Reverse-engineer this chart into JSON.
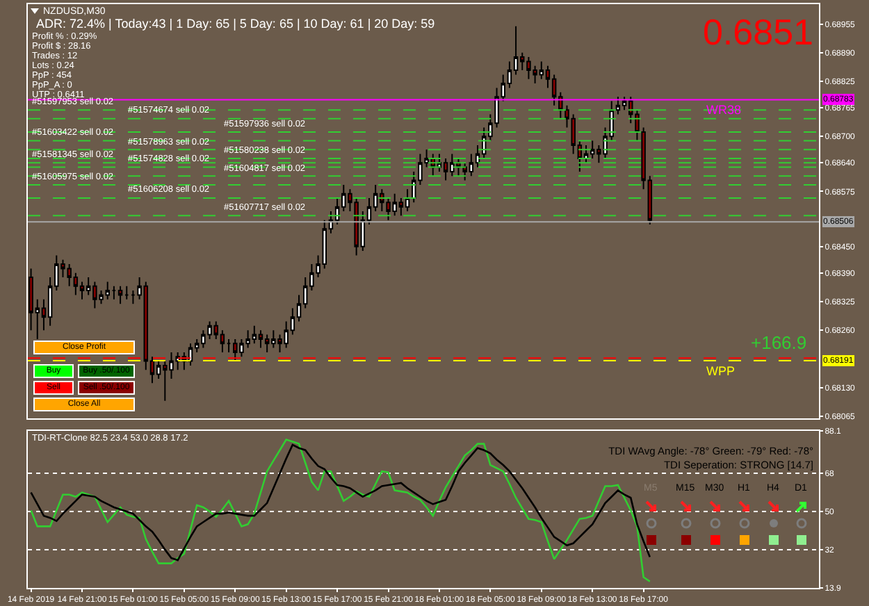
{
  "chart_data": [
    {
      "type": "candlestick",
      "title": "NZDUSD,M30",
      "subtitle": "ADR: 72.4% | Today:43 | 1 Day: 65 | 5 Day: 65 | 10 Day: 61 | 20 Day: 59",
      "tick_labels": "y",
      "ylim": [
        0.6806,
        0.69
      ],
      "yticks": [
        0.68955,
        {
          "value": 0.6889,
          "label": "0.68890"
        },
        0.68825,
        0.68765,
        {
          "value": 0.687,
          "label": "0.68700"
        },
        {
          "value": 0.6864,
          "label": "0.68640"
        },
        0.68575,
        {
          "value": 0.6845,
          "label": "0.68450"
        },
        {
          "value": 0.6839,
          "label": "0.68390"
        },
        0.68325,
        {
          "value": 0.6826,
          "label": "0.68260"
        },
        {
          "value": 0.6813,
          "label": "0.68130"
        },
        0.68065
      ],
      "categories": [
        null,
        null,
        null,
        null,
        null,
        null,
        null,
        null,
        null,
        null,
        null,
        null,
        null,
        null,
        null,
        null,
        null,
        null,
        null,
        null,
        null,
        null,
        null,
        null,
        null,
        null,
        null,
        null,
        null,
        null,
        null,
        null,
        null,
        null,
        null,
        null,
        null,
        null,
        null,
        null,
        null,
        null,
        null,
        null,
        null,
        null,
        null,
        null,
        null,
        null,
        null,
        null,
        null,
        null,
        null,
        null,
        null,
        null,
        null,
        null,
        null,
        null,
        null,
        null,
        null,
        null,
        null,
        null,
        null,
        null,
        null,
        null,
        null,
        null,
        null,
        null,
        null,
        null,
        null,
        null,
        null,
        null,
        null,
        null,
        null,
        null,
        null,
        null,
        null,
        null,
        null,
        null,
        null,
        null,
        null,
        null,
        null,
        null,
        null,
        null,
        null,
        null,
        null,
        null,
        null,
        null,
        null,
        null,
        null,
        null,
        null,
        null,
        null,
        null,
        null,
        null,
        null,
        null,
        null,
        null,
        null,
        null,
        null,
        null
      ],
      "ohlc": [
        [
          0.6838,
          0.684,
          0.6826,
          0.683
        ],
        [
          0.683,
          0.6833,
          0.6824,
          0.6831
        ],
        [
          0.6831,
          0.6833,
          0.6826,
          0.6829
        ],
        [
          0.6829,
          0.6838,
          0.6827,
          0.6836
        ],
        [
          0.6836,
          0.6843,
          0.6835,
          0.6841
        ],
        [
          0.6841,
          0.6842,
          0.6838,
          0.684
        ],
        [
          0.684,
          0.6841,
          0.6836,
          0.6838
        ],
        [
          0.6838,
          0.6839,
          0.6834,
          0.6836
        ],
        [
          0.6836,
          0.6837,
          0.6833,
          0.6835
        ],
        [
          0.6835,
          0.6838,
          0.6834,
          0.6836
        ],
        [
          0.6836,
          0.6837,
          0.6831,
          0.6833
        ],
        [
          0.6833,
          0.6835,
          0.6832,
          0.6834
        ],
        [
          0.6834,
          0.6837,
          0.6833,
          0.6835
        ],
        [
          0.6835,
          0.6836,
          0.6833,
          0.6835
        ],
        [
          0.6835,
          0.6836,
          0.6832,
          0.6834
        ],
        [
          0.6834,
          0.6836,
          0.6833,
          0.6834
        ],
        [
          0.6834,
          0.6835,
          0.6832,
          0.6834
        ],
        [
          0.6834,
          0.6838,
          0.6833,
          0.6836
        ],
        [
          0.6836,
          0.6837,
          0.6817,
          0.6819
        ],
        [
          0.6819,
          0.682,
          0.6814,
          0.6816
        ],
        [
          0.6816,
          0.6819,
          0.6815,
          0.6818
        ],
        [
          0.6818,
          0.6819,
          0.681,
          0.6817
        ],
        [
          0.6817,
          0.6821,
          0.6815,
          0.6819
        ],
        [
          0.6819,
          0.6821,
          0.6817,
          0.682
        ],
        [
          0.682,
          0.6821,
          0.6817,
          0.6819
        ],
        [
          0.6819,
          0.6823,
          0.6818,
          0.6822
        ],
        [
          0.6822,
          0.6824,
          0.6821,
          0.6823
        ],
        [
          0.6823,
          0.6826,
          0.6822,
          0.6825
        ],
        [
          0.6825,
          0.6828,
          0.6824,
          0.6827
        ],
        [
          0.6827,
          0.6828,
          0.6824,
          0.6825
        ],
        [
          0.6825,
          0.6826,
          0.6821,
          0.6823
        ],
        [
          0.6823,
          0.6824,
          0.6821,
          0.6823
        ],
        [
          0.6823,
          0.6824,
          0.6819,
          0.6821
        ],
        [
          0.6821,
          0.6824,
          0.682,
          0.6823
        ],
        [
          0.6823,
          0.6826,
          0.6822,
          0.6824
        ],
        [
          0.6824,
          0.6827,
          0.6823,
          0.6825
        ],
        [
          0.6825,
          0.6826,
          0.6822,
          0.6824
        ],
        [
          0.6824,
          0.6825,
          0.6821,
          0.6823
        ],
        [
          0.6823,
          0.6826,
          0.6822,
          0.6824
        ],
        [
          0.6824,
          0.6825,
          0.6821,
          0.6823
        ],
        [
          0.6823,
          0.6828,
          0.6822,
          0.6826
        ],
        [
          0.6826,
          0.6831,
          0.6825,
          0.6829
        ],
        [
          0.6829,
          0.6834,
          0.6828,
          0.6832
        ],
        [
          0.6832,
          0.6838,
          0.6831,
          0.6836
        ],
        [
          0.6836,
          0.6841,
          0.6835,
          0.6839
        ],
        [
          0.6839,
          0.6843,
          0.6838,
          0.6841
        ],
        [
          0.6841,
          0.6851,
          0.684,
          0.6849
        ],
        [
          0.6849,
          0.6853,
          0.6848,
          0.6851
        ],
        [
          0.6851,
          0.6856,
          0.685,
          0.6854
        ],
        [
          0.6854,
          0.6859,
          0.6853,
          0.6857
        ],
        [
          0.6857,
          0.6858,
          0.6853,
          0.6855
        ],
        [
          0.6855,
          0.6856,
          0.6843,
          0.6845
        ],
        [
          0.6845,
          0.6853,
          0.6844,
          0.6851
        ],
        [
          0.6851,
          0.6856,
          0.685,
          0.6854
        ],
        [
          0.6854,
          0.6859,
          0.6853,
          0.6857
        ],
        [
          0.6857,
          0.6858,
          0.6853,
          0.6855
        ],
        [
          0.6855,
          0.6856,
          0.6851,
          0.6853
        ],
        [
          0.6853,
          0.6857,
          0.6852,
          0.6855
        ],
        [
          0.6855,
          0.6856,
          0.6852,
          0.6854
        ],
        [
          0.6854,
          0.6858,
          0.6853,
          0.6856
        ],
        [
          0.6856,
          0.6862,
          0.6855,
          0.686
        ],
        [
          0.686,
          0.6866,
          0.6859,
          0.6864
        ],
        [
          0.6864,
          0.6867,
          0.6863,
          0.6865
        ],
        [
          0.6865,
          0.6866,
          0.6861,
          0.6863
        ],
        [
          0.6863,
          0.6866,
          0.6862,
          0.6864
        ],
        [
          0.6864,
          0.6865,
          0.686,
          0.6862
        ],
        [
          0.6862,
          0.6866,
          0.6861,
          0.6864
        ],
        [
          0.6864,
          0.6865,
          0.6861,
          0.6863
        ],
        [
          0.6863,
          0.6864,
          0.686,
          0.6862
        ],
        [
          0.6862,
          0.6866,
          0.6861,
          0.6864
        ],
        [
          0.6864,
          0.6868,
          0.6863,
          0.6866
        ],
        [
          0.6866,
          0.6872,
          0.6865,
          0.687
        ],
        [
          0.687,
          0.6875,
          0.6869,
          0.6873
        ],
        [
          0.6873,
          0.6881,
          0.6872,
          0.6879
        ],
        [
          0.6879,
          0.6884,
          0.6878,
          0.6882
        ],
        [
          0.6882,
          0.6887,
          0.6881,
          0.6885
        ],
        [
          0.6885,
          0.6895,
          0.6884,
          0.6888
        ],
        [
          0.6888,
          0.6889,
          0.6885,
          0.6887
        ],
        [
          0.6887,
          0.6888,
          0.6883,
          0.6885
        ],
        [
          0.6885,
          0.6886,
          0.6882,
          0.6884
        ],
        [
          0.6884,
          0.6887,
          0.6883,
          0.6885
        ],
        [
          0.6885,
          0.6886,
          0.6881,
          0.6883
        ],
        [
          0.6883,
          0.6884,
          0.6877,
          0.6879
        ],
        [
          0.6879,
          0.688,
          0.6874,
          0.6876
        ],
        [
          0.6876,
          0.6877,
          0.6872,
          0.6874
        ],
        [
          0.6874,
          0.6875,
          0.6866,
          0.6868
        ],
        [
          0.6868,
          0.6869,
          0.6862,
          0.6865
        ],
        [
          0.6865,
          0.6868,
          0.6864,
          0.6866
        ],
        [
          0.6866,
          0.6869,
          0.6865,
          0.6867
        ],
        [
          0.6867,
          0.6868,
          0.6864,
          0.6866
        ],
        [
          0.6866,
          0.6872,
          0.6865,
          0.687
        ],
        [
          0.687,
          0.6878,
          0.6869,
          0.6876
        ],
        [
          0.6876,
          0.6879,
          0.6875,
          0.6877
        ],
        [
          0.6877,
          0.6879,
          0.6876,
          0.6878
        ],
        [
          0.6878,
          0.6879,
          0.6873,
          0.6875
        ],
        [
          0.6875,
          0.6876,
          0.6869,
          0.6871
        ],
        [
          0.6871,
          0.6872,
          0.6858,
          0.686
        ],
        [
          0.686,
          0.6861,
          0.685,
          0.6851
        ],
        null,
        null,
        null,
        null,
        null,
        null,
        null,
        null,
        null,
        null,
        null,
        null,
        null,
        null,
        null,
        null,
        null,
        null,
        null,
        null,
        null,
        null,
        null,
        null,
        null,
        null
      ],
      "ref_lines": [
        {
          "axis": "y",
          "value": 0.68783,
          "label": "0.68783",
          "color": "#ff00ff",
          "line_style": "solid"
        },
        {
          "axis": "y",
          "value": 0.68506,
          "label": "0.68506",
          "color": "#a8a8a8",
          "line_style": "solid"
        },
        {
          "axis": "y",
          "value": 0.68197,
          "label": null,
          "color": "#ff0000",
          "line_style": "dashed"
        },
        {
          "axis": "y",
          "value": 0.68191,
          "label": "0.68191",
          "color": "#ffff00",
          "line_style": "dashed"
        },
        {
          "axis": "y",
          "value": 0.6876,
          "label": "#51597953 sell 0.02",
          "color": "#32cd32",
          "line_style": "dashed"
        },
        {
          "axis": "y",
          "value": 0.6874,
          "label": "#51574674 sell 0.02",
          "color": "#32cd32",
          "line_style": "dashed"
        },
        {
          "axis": "y",
          "value": 0.6871,
          "label": "#51597936 sell 0.02",
          "color": "#32cd32",
          "line_style": "dashed"
        },
        {
          "axis": "y",
          "value": 0.6869,
          "label": "#51603422 sell 0.02",
          "color": "#32cd32",
          "line_style": "dashed"
        },
        {
          "axis": "y",
          "value": 0.6867,
          "label": "#51578963 sell 0.02",
          "color": "#32cd32",
          "line_style": "dashed"
        },
        {
          "axis": "y",
          "value": 0.6865,
          "label": "#51580238 sell 0.02",
          "color": "#32cd32",
          "line_style": "dashed"
        },
        {
          "axis": "y",
          "value": 0.6864,
          "label": "#51581345 sell 0.02",
          "color": "#32cd32",
          "line_style": "dashed"
        },
        {
          "axis": "y",
          "value": 0.6863,
          "label": "#51574828 sell 0.02",
          "color": "#32cd32",
          "line_style": "dashed"
        },
        {
          "axis": "y",
          "value": 0.6861,
          "label": "#51604817 sell 0.02",
          "color": "#32cd32",
          "line_style": "dashed"
        },
        {
          "axis": "y",
          "value": 0.6859,
          "label": "#51605975 sell 0.02",
          "color": "#32cd32",
          "line_style": "dashed"
        },
        {
          "axis": "y",
          "value": 0.6856,
          "label": "#51606208 sell 0.02",
          "color": "#32cd32",
          "line_style": "dashed"
        },
        {
          "axis": "y",
          "value": 0.6852,
          "label": "#51607717 sell 0.02",
          "color": "#32cd32",
          "line_style": "dashed"
        }
      ],
      "annotations": [
        "Profit % : 0.29%",
        "Profit $ : 28.16",
        "Trades : 12",
        "Lots : 0.24",
        "PpP : 454",
        "PpP_A : 0",
        "UTP : 0.6411",
        "0.6851",
        "+166.9",
        "Close Profit",
        "Buy",
        "Buy .50/.100",
        "Sell",
        "Sell .50/.100",
        "Close All",
        "WR38",
        "WPP"
      ]
    },
    {
      "type": "line",
      "title": "TDI-RT-Clone 82.5 23.4 53.0 28.8 17.2",
      "ylim": [
        13.9,
        88.1
      ],
      "yticks": [
        88.1,
        68,
        50,
        32,
        13.9
      ],
      "grid": "y",
      "categories": [
        "14 Feb 2019",
        null,
        null,
        null,
        null,
        null,
        null,
        null,
        "14 Feb 21:00",
        null,
        null,
        null,
        null,
        null,
        null,
        null,
        "15 Feb 01:00",
        null,
        null,
        null,
        null,
        null,
        null,
        null,
        "15 Feb 05:00",
        null,
        null,
        null,
        null,
        null,
        null,
        null,
        "15 Feb 09:00",
        null,
        null,
        null,
        null,
        null,
        null,
        null,
        "15 Feb 13:00",
        null,
        null,
        null,
        null,
        null,
        null,
        null,
        "15 Feb 17:00",
        null,
        null,
        null,
        null,
        null,
        null,
        null,
        "15 Feb 21:00",
        null,
        null,
        null,
        null,
        null,
        null,
        null,
        "18 Feb 01:00",
        null,
        null,
        null,
        null,
        null,
        null,
        null,
        "18 Feb 05:00",
        null,
        null,
        null,
        null,
        null,
        null,
        null,
        "18 Feb 09:00",
        null,
        null,
        null,
        null,
        null,
        null,
        null,
        "18 Feb 13:00",
        null,
        null,
        null,
        null,
        null,
        null,
        null,
        "18 Feb 17:00",
        null,
        null,
        null,
        null,
        null,
        null,
        null,
        null,
        null,
        null,
        null,
        null,
        null,
        null,
        null,
        null,
        null,
        null,
        null,
        null,
        null,
        null,
        null,
        null,
        null,
        null,
        null
      ],
      "series": [
        {
          "color": "#32cd32",
          "values": [
            50.5,
            43,
            43,
            43,
            50.5,
            58,
            58,
            57,
            59,
            58,
            57,
            51,
            45,
            48.5,
            52,
            48.5,
            47.5,
            47,
            37,
            31,
            25.5,
            25.5,
            25.5,
            28,
            30,
            41.5,
            53,
            52,
            50,
            47.5,
            51,
            55,
            49,
            43,
            44,
            49,
            59,
            69,
            74,
            79,
            84,
            83,
            82,
            73,
            64,
            60,
            69,
            69,
            62,
            55,
            57,
            59.5,
            58,
            57,
            63,
            69,
            68.5,
            60,
            59.5,
            59,
            57,
            55.5,
            52,
            48,
            55,
            61.5,
            66.5,
            71.5,
            76.5,
            79,
            82,
            82,
            72,
            70.5,
            69,
            63,
            56.5,
            51.5,
            46.5,
            46,
            45,
            36,
            27.5,
            32,
            36.5,
            41.5,
            46.5,
            47,
            48,
            55,
            62,
            62,
            62.5,
            56.5,
            50.5,
            43,
            19,
            17,
            null,
            null,
            null,
            null,
            null,
            null,
            null,
            null,
            null,
            null,
            null,
            null,
            null,
            null,
            null,
            null,
            null,
            null,
            null,
            null,
            null,
            null,
            null,
            null,
            null,
            null
          ]
        },
        {
          "color": "#000000",
          "values": [
            59,
            53.5,
            48,
            47,
            45.5,
            49,
            52,
            55,
            58,
            57.5,
            57,
            55,
            53.5,
            52,
            51,
            50,
            49,
            46,
            43,
            40.5,
            36.5,
            32,
            28,
            27,
            32.5,
            38,
            43,
            45,
            47,
            49,
            49,
            49.5,
            49,
            48.5,
            48,
            48,
            51,
            54,
            61,
            68,
            75,
            81.5,
            80,
            79,
            75,
            71.5,
            70,
            66,
            62.5,
            62,
            61,
            59,
            57,
            58.5,
            60,
            62,
            62.5,
            63,
            63.5,
            61,
            59,
            57,
            55,
            53.5,
            54.5,
            55.5,
            62,
            69,
            73,
            76.5,
            80,
            79,
            77.5,
            74.5,
            72,
            69,
            65,
            61,
            56.5,
            52,
            47,
            42.5,
            38,
            36,
            34,
            35,
            38,
            41,
            44,
            49,
            54,
            57,
            60,
            58,
            56.5,
            44,
            36,
            28.5,
            null,
            null,
            null,
            null,
            null,
            null,
            null,
            null,
            null,
            null,
            null,
            null,
            null,
            null,
            null,
            null,
            null,
            null,
            null,
            null,
            null,
            null,
            null,
            null,
            null,
            null
          ]
        }
      ],
      "annotations": [
        "TDI WAvg Angle: -78°  Green: -79°  Red: -78°",
        "TDI Seperation: STRONG [14.7]",
        "M5",
        "M15",
        "M30",
        "H1",
        "H4",
        "D1"
      ]
    }
  ]
}
